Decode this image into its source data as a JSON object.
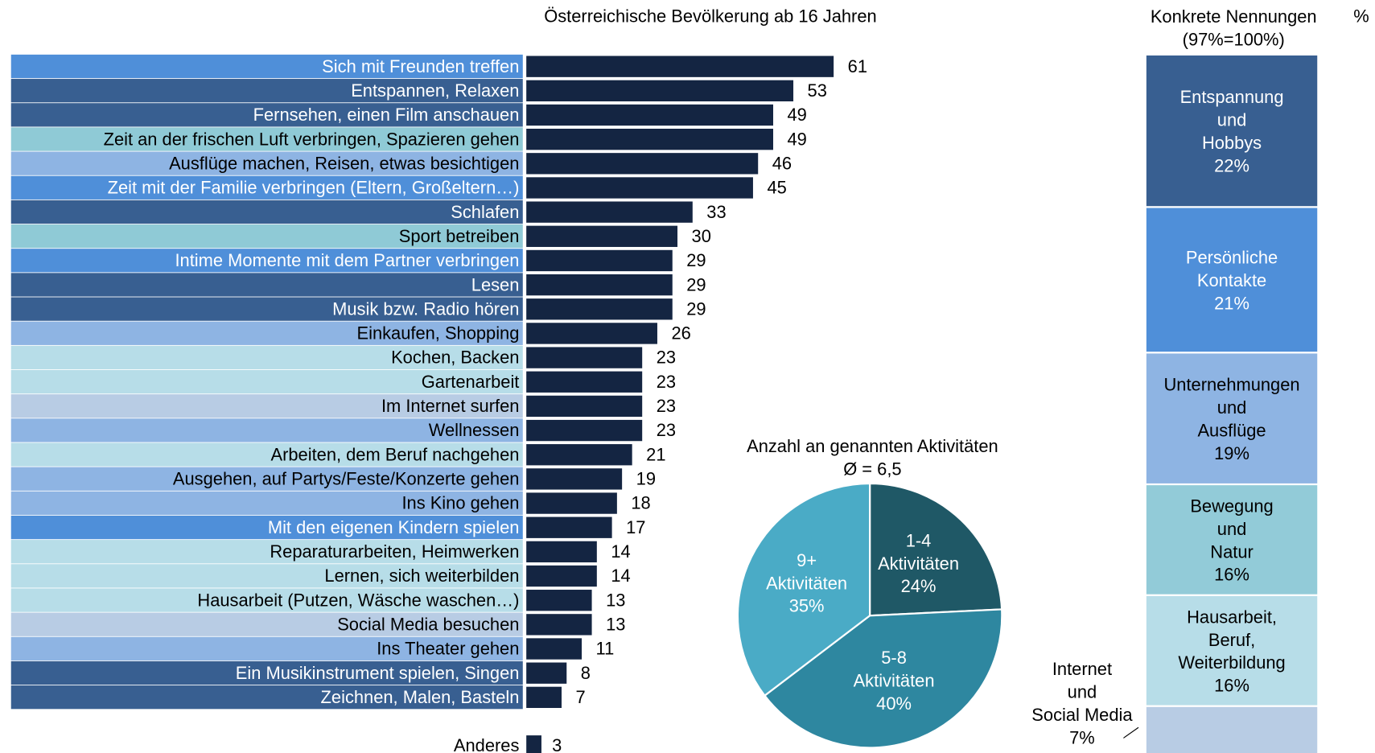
{
  "chart_data": [
    {
      "type": "hbar",
      "title": "Österreichische Bevölkerung ab 16 Jahren",
      "categories": [
        "Sich mit Freunden treffen",
        "Entspannen, Relaxen",
        "Fernsehen, einen Film anschauen",
        "Zeit an der frischen Luft verbringen, Spazieren gehen",
        "Ausflüge machen, Reisen, etwas besichtigen",
        "Zeit mit der Familie verbringen (Eltern, Großeltern…)",
        "Schlafen",
        "Sport betreiben",
        "Intime Momente mit dem Partner verbringen",
        "Lesen",
        "Musik bzw. Radio hören",
        "Einkaufen, Shopping",
        "Kochen, Backen",
        "Gartenarbeit",
        "Im Internet surfen",
        "Wellnessen",
        "Arbeiten, dem Beruf nachgehen",
        "Ausgehen, auf Partys/Feste/Konzerte gehen",
        "Ins Kino gehen",
        "Mit den eigenen Kindern spielen",
        "Reparaturarbeiten, Heimwerken",
        "Lernen, sich weiterbilden",
        "Hausarbeit (Putzen, Wäsche waschen…)",
        "Social Media besuchen",
        "Ins Theater gehen",
        "Ein Musikinstrument spielen, Singen",
        "Zeichnen, Malen, Basteln"
      ],
      "values": [
        61,
        53,
        49,
        49,
        46,
        45,
        33,
        30,
        29,
        29,
        29,
        26,
        23,
        23,
        23,
        23,
        21,
        19,
        18,
        17,
        14,
        14,
        13,
        13,
        11,
        8,
        7
      ],
      "label_colors": [
        "#4f8fd9",
        "#385f91",
        "#385f91",
        "#8fcad6",
        "#8eb4e3",
        "#4f8fd9",
        "#385f91",
        "#8fcad6",
        "#4f8fd9",
        "#385f91",
        "#385f91",
        "#8eb4e3",
        "#b7dde8",
        "#b7dde8",
        "#b8cce4",
        "#8eb4e3",
        "#b7dde8",
        "#8eb4e3",
        "#8eb4e3",
        "#4f8fd9",
        "#b7dde8",
        "#b7dde8",
        "#b7dde8",
        "#b8cce4",
        "#8eb4e3",
        "#385f91",
        "#385f91"
      ],
      "color": "#142542",
      "other": {
        "category": "Anderes",
        "value": 3
      }
    },
    {
      "type": "pie",
      "title": "Anzahl an genannten  Aktivitäten",
      "subtitle": "Ø = 6,5",
      "categories": [
        "1-4\nAktivitäten",
        "5-8\nAktivitäten",
        "9+\nAktivitäten"
      ],
      "values": [
        24,
        40,
        35
      ],
      "value_labels": [
        "24%",
        "40%",
        "35%"
      ],
      "colors": [
        "#1f5866",
        "#2e87a0",
        "#4aabc6"
      ]
    },
    {
      "type": "stacked-column",
      "title": "Konkrete Nennungen\n(97%=100%)",
      "unit": "%",
      "categories": [
        "Entspannung\nund\nHobbys",
        "Persönliche\nKontakte",
        "Unternehmungen\nund\nAusflüge",
        "Bewegung\nund\nNatur",
        "Hausarbeit,\nBeruf,\nWeiterbildung",
        "Internet\nund\nSocial Media"
      ],
      "values": [
        22,
        21,
        19,
        16,
        16,
        7
      ],
      "value_labels": [
        "22%",
        "21%",
        "19%",
        "16%",
        "16%",
        "7%"
      ],
      "colors": [
        "#385f91",
        "#4f8fd9",
        "#8eb4e3",
        "#92cbd8",
        "#b7dde8",
        "#b8cce4"
      ]
    }
  ]
}
